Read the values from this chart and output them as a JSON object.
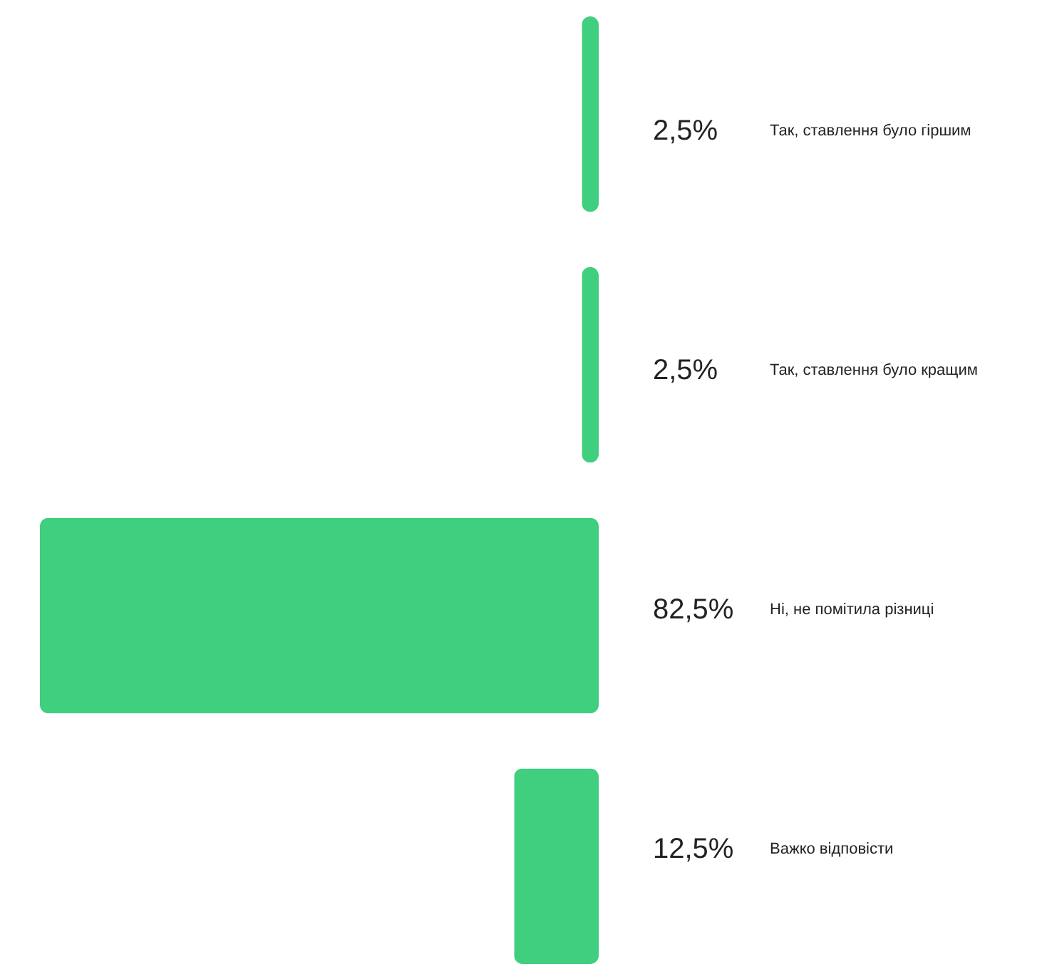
{
  "chart_data": {
    "type": "bar",
    "orientation": "horizontal",
    "categories": [
      "Так, ставлення було гіршим",
      "Так, ставлення було кращим",
      "Ні, не помітила різниці",
      "Важко відповісти"
    ],
    "values": [
      2.5,
      2.5,
      82.5,
      12.5
    ],
    "color": "#3fcf7f",
    "value_labels": [
      "2,5%",
      "2,5%",
      "82,5%",
      "12,5%"
    ]
  }
}
